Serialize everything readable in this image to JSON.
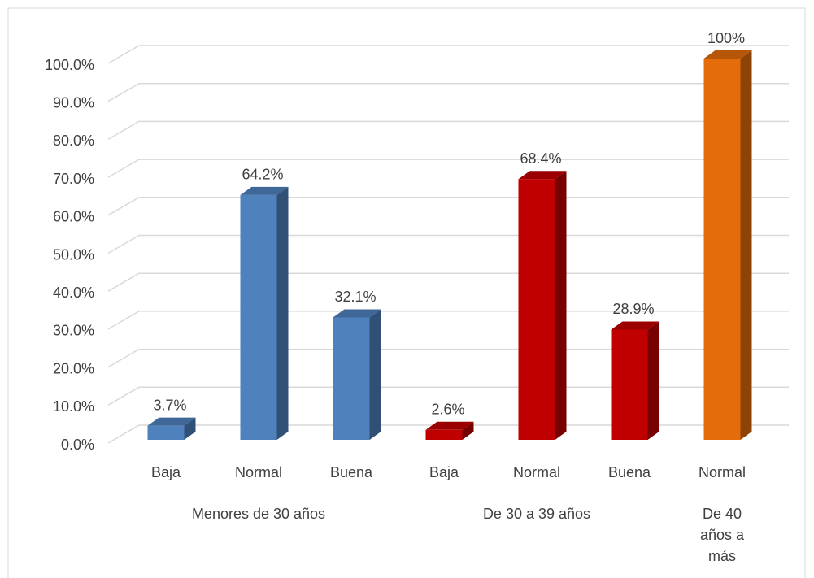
{
  "chart_data": {
    "type": "bar3d",
    "categories": [
      "Baja",
      "Normal",
      "Buena",
      "Baja",
      "Normal",
      "Buena",
      "Normal"
    ],
    "groups": [
      {
        "name": "Menores de 30 años",
        "size": 3
      },
      {
        "name": "De 30 a 39 años",
        "size": 3
      },
      {
        "name": "De 40 años a más",
        "size": 1
      }
    ],
    "values": [
      3.7,
      64.2,
      32.1,
      2.6,
      68.4,
      28.9,
      100
    ],
    "value_labels": [
      "3.7%",
      "64.2%",
      "32.1%",
      "2.6%",
      "68.4%",
      "28.9%",
      "100%"
    ],
    "colors": [
      "#4f81bd",
      "#4f81bd",
      "#4f81bd",
      "#c00000",
      "#c00000",
      "#c00000",
      "#e46c0a"
    ],
    "ylim": [
      0,
      100
    ],
    "yticks": [
      {
        "value": 0,
        "label": "0.0%"
      },
      {
        "value": 10,
        "label": "10.0%"
      },
      {
        "value": 20,
        "label": "20.0%"
      },
      {
        "value": 30,
        "label": "30.0%"
      },
      {
        "value": 40,
        "label": "40.0%"
      },
      {
        "value": 50,
        "label": "50.0%"
      },
      {
        "value": 60,
        "label": "60.0%"
      },
      {
        "value": 70,
        "label": "70.0%"
      },
      {
        "value": 80,
        "label": "80.0%"
      },
      {
        "value": 90,
        "label": "90.0%"
      },
      {
        "value": 100,
        "label": "100.0%"
      }
    ],
    "grid": true
  }
}
